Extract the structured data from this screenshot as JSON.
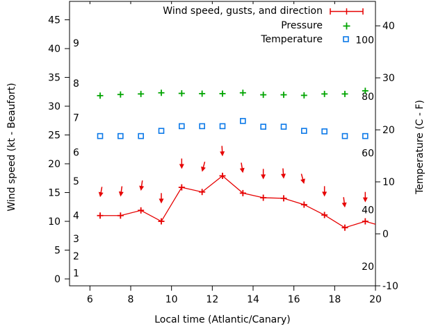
{
  "chart_data": {
    "type": "line",
    "legend": [
      {
        "label": "Wind speed, gusts, and direction",
        "marker": "errorbar",
        "color": "#e60000"
      },
      {
        "label": "Pressure",
        "marker": "plus",
        "color": "#00a400"
      },
      {
        "label": "Temperature",
        "marker": "open-square",
        "color": "#0a78e8"
      }
    ],
    "xlabel": "Local time (Atlantic/Canary)",
    "ylabel_left": "Wind speed (kt - Beaufort)",
    "ylabel_right": "Temperature (C - F)",
    "axes": {
      "x_ticks": [
        6,
        8,
        10,
        12,
        14,
        16,
        18,
        20
      ],
      "xlim": [
        5,
        20
      ],
      "left_ticks": [
        0,
        5,
        10,
        15,
        20,
        25,
        30,
        35,
        40,
        45
      ],
      "left_range": [
        -1.2,
        48.2
      ],
      "beaufort_labels": [
        {
          "b": "1",
          "kt": 1
        },
        {
          "b": "2",
          "kt": 4
        },
        {
          "b": "3",
          "kt": 7
        },
        {
          "b": "4",
          "kt": 11
        },
        {
          "b": "5",
          "kt": 17
        },
        {
          "b": "6",
          "kt": 22
        },
        {
          "b": "7",
          "kt": 28
        },
        {
          "b": "8",
          "kt": 34
        },
        {
          "b": "9",
          "kt": 41
        }
      ],
      "right_ticks": [
        -10,
        0,
        10,
        20,
        30,
        40
      ],
      "right_range": [
        -10,
        44.7
      ],
      "right_inner_ticks": [
        20,
        40,
        60,
        80,
        100
      ],
      "right_inner_range": [
        13.1,
        113.6
      ],
      "grid": false
    },
    "x": [
      6.5,
      7.5,
      8.5,
      9.5,
      10.5,
      11.5,
      12.5,
      13.5,
      14.5,
      15.5,
      16.5,
      17.5,
      18.5,
      19.5
    ],
    "series": [
      {
        "name": "wind_speed_kt",
        "values": [
          11.0,
          11.0,
          11.9,
          10.0,
          15.9,
          15.1,
          17.9,
          14.9,
          14.1,
          14.0,
          12.9,
          11.1,
          8.9,
          10.0
        ]
      },
      {
        "name": "wind_gust_kt",
        "values": [
          14.2,
          14.3,
          15.3,
          13.1,
          19.1,
          18.6,
          21.3,
          18.4,
          17.3,
          17.4,
          16.5,
          14.3,
          12.4,
          13.3
        ]
      },
      {
        "name": "wind_dir_arrow_deg_from_down",
        "values": [
          -10,
          -8,
          -8,
          0,
          0,
          -15,
          3,
          9,
          0,
          4,
          15,
          0,
          7,
          0
        ]
      },
      {
        "name": "pressure_on_inner_scale",
        "values": [
          80.3,
          80.7,
          80.9,
          81.3,
          81.1,
          81.0,
          81.0,
          81.3,
          80.6,
          80.6,
          80.4,
          80.9,
          80.9,
          82.0
        ]
      },
      {
        "name": "temperature_c",
        "values": [
          18.8,
          18.8,
          18.8,
          19.8,
          20.7,
          20.7,
          20.7,
          21.7,
          20.6,
          20.6,
          19.8,
          19.7,
          18.8,
          18.8
        ]
      }
    ],
    "wind_line_end": {
      "x": 20.0,
      "kt": 9.5
    }
  }
}
